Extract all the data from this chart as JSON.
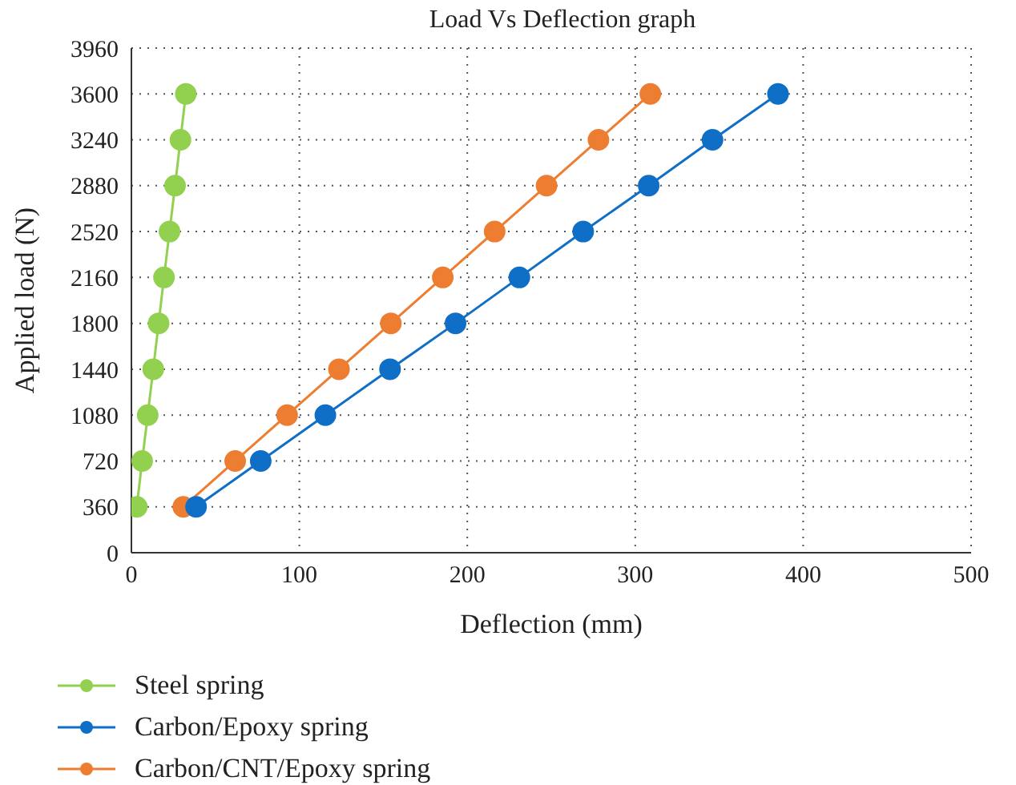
{
  "chart_data": {
    "type": "line",
    "title": "Load Vs Deflection graph",
    "xlabel": "Deflection (mm)",
    "ylabel": "Applied load (N)",
    "xlim": [
      0,
      500
    ],
    "xticks": [
      0,
      100,
      200,
      300,
      400,
      500
    ],
    "ylim": [
      0,
      3960
    ],
    "yticks": [
      0,
      360,
      720,
      1080,
      1440,
      1800,
      2160,
      2520,
      2880,
      3240,
      3600,
      3960
    ],
    "grid": true,
    "legend": "bottom",
    "marker": "circle",
    "line_style": "solid",
    "series": [
      {
        "name": "Steel spring",
        "color": "#92d050",
        "x": [
          3.2,
          6.4,
          9.7,
          13,
          16.2,
          19.4,
          22.7,
          26,
          29.2,
          32.4
        ],
        "values": [
          360,
          720,
          1080,
          1440,
          1800,
          2160,
          2520,
          2880,
          3240,
          3600
        ]
      },
      {
        "name": "Carbon/Epoxy spring",
        "color": "#0f6fc6",
        "x": [
          38.5,
          77,
          115.5,
          154,
          193,
          231,
          269,
          308,
          346,
          385
        ],
        "values": [
          360,
          720,
          1080,
          1440,
          1800,
          2160,
          2520,
          2880,
          3240,
          3600
        ]
      },
      {
        "name": "Carbon/CNT/Epoxy spring",
        "color": "#ed7d31",
        "x": [
          30.9,
          61.8,
          92.7,
          123.6,
          154.5,
          185.4,
          216.3,
          247.2,
          278.1,
          309
        ],
        "values": [
          360,
          720,
          1080,
          1440,
          1800,
          2160,
          2520,
          2880,
          3240,
          3600
        ]
      }
    ]
  }
}
